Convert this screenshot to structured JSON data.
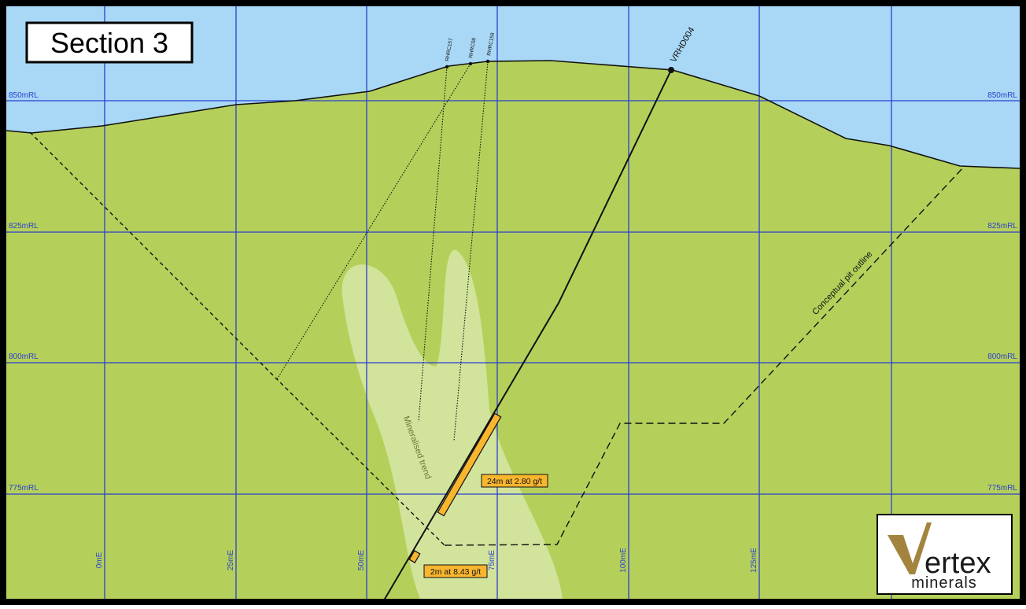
{
  "title": "Section 3",
  "colors": {
    "sky": "#a8d8f5",
    "ground": "#b5d05a",
    "mineral_zone": "#d2e39c",
    "grid": "#2b3fcf",
    "intercept": "#f8b52e",
    "logo_gold": "#a2843e"
  },
  "grid_labels": {
    "rl": [
      "850mRL",
      "825mRL",
      "800mRL",
      "775mRL"
    ],
    "me": [
      "0mE",
      "25mE",
      "50mE",
      "75mE",
      "100mE",
      "125mE"
    ]
  },
  "drillholes": {
    "rhrc157": "RHRC157",
    "rhrc08": "RHRC08",
    "rhrc158": "RHRC158",
    "vrhd004": "VRHD004"
  },
  "annotations": {
    "mineralised_trend": "Mineralised trend",
    "pit_outline": "Conceptual pit outline"
  },
  "intercepts": {
    "upper": "24m at 2.80 g/t",
    "lower": "2m at 8.43 g/t"
  },
  "logo": {
    "line1": "ertex",
    "line2": "minerals"
  }
}
